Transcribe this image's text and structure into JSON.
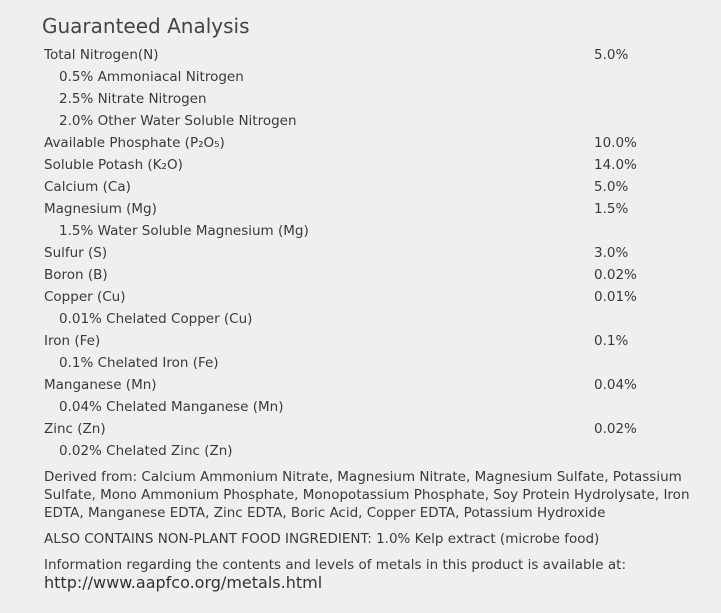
{
  "title": "Guaranteed Analysis",
  "rows": [
    {
      "label": "Total Nitrogen(N)",
      "value": "5.0%",
      "details": [
        "0.5% Ammoniacal Nitrogen",
        "2.5% Nitrate Nitrogen",
        "2.0% Other Water Soluble Nitrogen"
      ]
    },
    {
      "label": "Available Phosphate (P₂O₅)",
      "value": "10.0%"
    },
    {
      "label": "Soluble Potash (K₂O)",
      "value": "14.0%"
    },
    {
      "label": "Calcium (Ca)",
      "value": "5.0%"
    },
    {
      "label": "Magnesium (Mg)",
      "value": "1.5%",
      "details": [
        "1.5% Water Soluble Magnesium (Mg)"
      ]
    },
    {
      "label": "Sulfur (S)",
      "value": "3.0%"
    },
    {
      "label": "Boron (B)",
      "value": "0.02%"
    },
    {
      "label": "Copper (Cu)",
      "value": "0.01%",
      "details": [
        "0.01% Chelated Copper (Cu)"
      ]
    },
    {
      "label": "Iron (Fe)",
      "value": "0.1%",
      "details": [
        "0.1% Chelated Iron (Fe)"
      ]
    },
    {
      "label": "Manganese (Mn)",
      "value": "0.04%",
      "details": [
        "0.04% Chelated Manganese (Mn)"
      ]
    },
    {
      "label": "Zinc (Zn)",
      "value": "0.02%",
      "details": [
        "0.02% Chelated Zinc (Zn)"
      ]
    }
  ],
  "derived": "Derived from: Calcium Ammonium Nitrate, Magnesium Nitrate, Magnesium Sulfate, Potassium Sulfate, Mono Ammonium Phosphate, Monopotassium Phosphate, Soy Protein Hydrolysate, Iron EDTA, Manganese EDTA, Zinc EDTA, Boric Acid, Copper EDTA, Potassium Hydroxide",
  "also_contains": "ALSO CONTAINS NON-PLANT FOOD INGREDIENT: 1.0% Kelp extract (microbe food)",
  "info": {
    "text": "Information regarding the contents and levels of metals in this product is available at:",
    "link": "http://www.aapfco.org/metals.html"
  }
}
